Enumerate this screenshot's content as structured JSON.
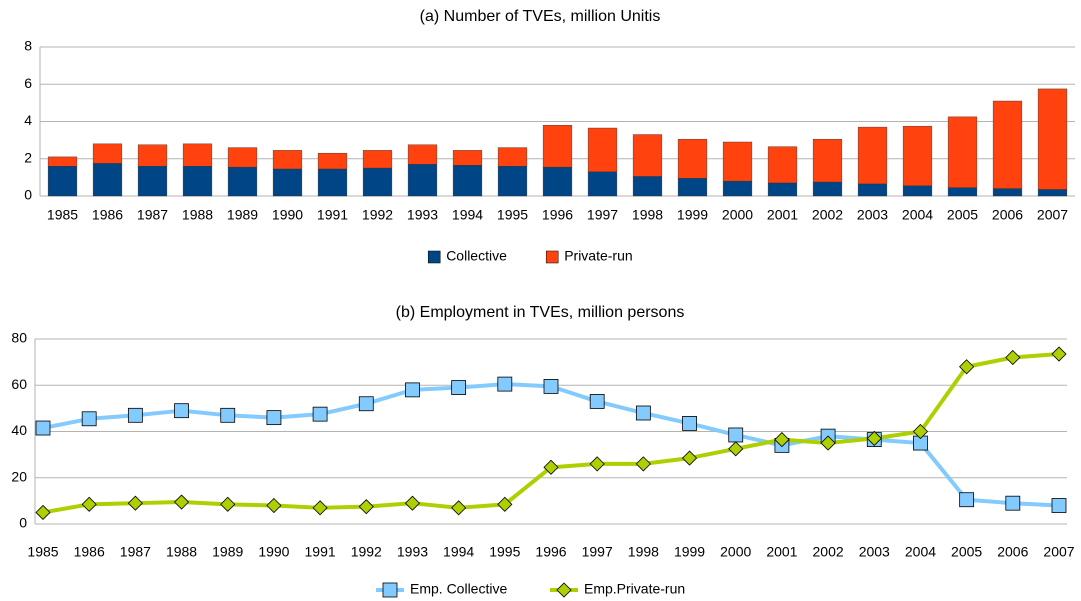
{
  "chart_data": [
    {
      "type": "bar",
      "stacked": true,
      "title": "(a) Number of TVEs, million Unitis",
      "categories": [
        "1985",
        "1986",
        "1987",
        "1988",
        "1989",
        "1990",
        "1991",
        "1992",
        "1993",
        "1994",
        "1995",
        "1996",
        "1997",
        "1998",
        "1999",
        "2000",
        "2001",
        "2002",
        "2003",
        "2004",
        "2005",
        "2006",
        "2007"
      ],
      "series": [
        {
          "name": "Collective",
          "color": "#004586",
          "values": [
            1.6,
            1.75,
            1.6,
            1.6,
            1.55,
            1.45,
            1.45,
            1.5,
            1.7,
            1.65,
            1.6,
            1.55,
            1.3,
            1.05,
            0.95,
            0.8,
            0.7,
            0.75,
            0.65,
            0.55,
            0.45,
            0.4,
            0.35
          ]
        },
        {
          "name": "Private-run",
          "color": "#ff420e",
          "values": [
            0.5,
            1.05,
            1.15,
            1.2,
            1.05,
            1.0,
            0.85,
            0.95,
            1.05,
            0.8,
            1.0,
            2.25,
            2.35,
            2.25,
            2.1,
            2.1,
            1.95,
            2.3,
            3.05,
            3.2,
            3.8,
            4.7,
            5.4
          ]
        }
      ],
      "ylim": [
        0,
        8
      ],
      "yticks": [
        0,
        2,
        4,
        6,
        8
      ],
      "grid": true,
      "legend": "bottom"
    },
    {
      "type": "line",
      "title": "(b) Employment in TVEs, million persons",
      "categories": [
        "1985",
        "1986",
        "1987",
        "1988",
        "1989",
        "1990",
        "1991",
        "1992",
        "1993",
        "1994",
        "1995",
        "1996",
        "1997",
        "1998",
        "1999",
        "2000",
        "2001",
        "2002",
        "2003",
        "2004",
        "2005",
        "2006",
        "2007"
      ],
      "series": [
        {
          "name": "Emp. Collective",
          "color": "#83caff",
          "marker": "square",
          "values": [
            41.5,
            45.5,
            47,
            49,
            47,
            46,
            47.5,
            52,
            58,
            59,
            60.5,
            59.5,
            53,
            48,
            43.5,
            38.5,
            34,
            38,
            36.5,
            35,
            10.5,
            9,
            8
          ]
        },
        {
          "name": "Emp.Private-run",
          "color": "#aecf00",
          "marker": "diamond",
          "values": [
            5,
            8.5,
            9,
            9.5,
            8.5,
            8,
            7,
            7.5,
            9,
            7,
            8.5,
            24.5,
            26,
            26,
            28.5,
            32.5,
            36.5,
            35,
            37,
            40,
            68,
            72,
            73.5
          ]
        }
      ],
      "ylim": [
        0,
        80
      ],
      "yticks": [
        0,
        20,
        40,
        60,
        80
      ],
      "grid": true,
      "legend": "bottom"
    }
  ]
}
